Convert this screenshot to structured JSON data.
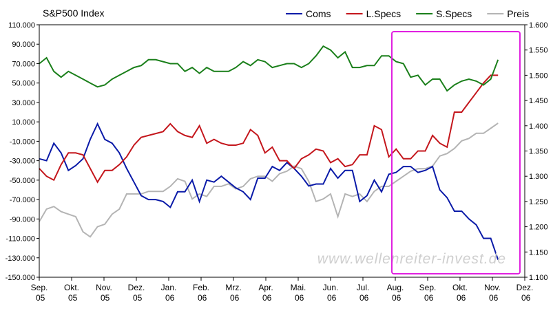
{
  "chart_data": {
    "type": "line",
    "title": "S&P500 Index",
    "annotation": "www.wellenreiter-invest.de",
    "legend": "top",
    "grid": false,
    "x": [
      0,
      0.225,
      0.45,
      0.675,
      0.9,
      1.125,
      1.35,
      1.575,
      1.8,
      2.025,
      2.25,
      2.475,
      2.7,
      2.925,
      3.15,
      3.375,
      3.6,
      3.825,
      4.05,
      4.275,
      4.5,
      4.725,
      4.95,
      5.175,
      5.4,
      5.625,
      5.85,
      6.075,
      6.3,
      6.525,
      6.75,
      6.975,
      7.2,
      7.425,
      7.65,
      7.875,
      8.1,
      8.325,
      8.55,
      8.775,
      9,
      9.225,
      9.45,
      9.675,
      9.9,
      10.125,
      10.35,
      10.575,
      10.8,
      11.025,
      11.25,
      11.475,
      11.7,
      11.925,
      12.15,
      12.375,
      12.6,
      12.825,
      13.05,
      13.275,
      13.5,
      13.725,
      13.95,
      14.175
    ],
    "xlim": [
      0,
      15
    ],
    "xticks": [
      {
        "value": 0,
        "label": "Sep. 05"
      },
      {
        "value": 1,
        "label": "Okt. 05"
      },
      {
        "value": 2,
        "label": "Nov. 05"
      },
      {
        "value": 3,
        "label": "Dez. 05"
      },
      {
        "value": 4,
        "label": "Jan. 06"
      },
      {
        "value": 5,
        "label": "Feb. 06"
      },
      {
        "value": 6,
        "label": "Mrz. 06"
      },
      {
        "value": 7,
        "label": "Apr. 06"
      },
      {
        "value": 8,
        "label": "Mai. 06"
      },
      {
        "value": 9,
        "label": "Jun. 06"
      },
      {
        "value": 10,
        "label": "Jul. 06"
      },
      {
        "value": 11,
        "label": "Aug. 06"
      },
      {
        "value": 12,
        "label": "Sep. 06"
      },
      {
        "value": 13,
        "label": "Okt. 06"
      },
      {
        "value": 14,
        "label": "Nov. 06"
      },
      {
        "value": 15,
        "label": "Dez. 06"
      }
    ],
    "ylim": [
      -150000,
      110000
    ],
    "yticks": [
      {
        "value": 110000,
        "label": "110.000"
      },
      {
        "value": 90000,
        "label": "90.000"
      },
      {
        "value": 70000,
        "label": "70.000"
      },
      {
        "value": 50000,
        "label": "50.000"
      },
      {
        "value": 30000,
        "label": "30.000"
      },
      {
        "value": 10000,
        "label": "10.000"
      },
      {
        "value": -10000,
        "label": "-10.000"
      },
      {
        "value": -30000,
        "label": "-30.000"
      },
      {
        "value": -50000,
        "label": "-50.000"
      },
      {
        "value": -70000,
        "label": "-70.000"
      },
      {
        "value": -90000,
        "label": "-90.000"
      },
      {
        "value": -110000,
        "label": "-110.000"
      },
      {
        "value": -130000,
        "label": "-130.000"
      },
      {
        "value": -150000,
        "label": "-150.000"
      }
    ],
    "y2lim": [
      1.1,
      1.6
    ],
    "y2ticks": [
      {
        "value": 1.6,
        "label": "1.600"
      },
      {
        "value": 1.55,
        "label": "1.550"
      },
      {
        "value": 1.5,
        "label": "1.500"
      },
      {
        "value": 1.45,
        "label": "1.450"
      },
      {
        "value": 1.4,
        "label": "1.400"
      },
      {
        "value": 1.35,
        "label": "1.350"
      },
      {
        "value": 1.3,
        "label": "1.300"
      },
      {
        "value": 1.25,
        "label": "1.250"
      },
      {
        "value": 1.2,
        "label": "1.200"
      },
      {
        "value": 1.15,
        "label": "1.150"
      },
      {
        "value": 1.1,
        "label": "1.100"
      }
    ],
    "series": [
      {
        "name": "Coms",
        "color": "#0a1aa8",
        "values": [
          -28000,
          -30000,
          -12000,
          -22000,
          -40000,
          -35000,
          -28000,
          -8000,
          8000,
          -8000,
          -12000,
          -22000,
          -38000,
          -52000,
          -66000,
          -70000,
          -70000,
          -72000,
          -78000,
          -62000,
          -62000,
          -50000,
          -72000,
          -50000,
          -52000,
          -46000,
          -52000,
          -58000,
          -62000,
          -70000,
          -48000,
          -48000,
          -36000,
          -40000,
          -32000,
          -38000,
          -46000,
          -56000,
          -54000,
          -54000,
          -38000,
          -48000,
          -40000,
          -40000,
          -72000,
          -66000,
          -50000,
          -62000,
          -44000,
          -42000,
          -36000,
          -36000,
          -42000,
          -40000,
          -36000,
          -60000,
          -68000,
          -82000,
          -82000,
          -90000,
          -96000,
          -110000,
          -110000,
          -132000
        ]
      },
      {
        "name": "L.Specs",
        "color": "#c4161c",
        "values": [
          -38000,
          -46000,
          -50000,
          -34000,
          -22000,
          -22000,
          -24000,
          -38000,
          -52000,
          -40000,
          -40000,
          -34000,
          -26000,
          -14000,
          -6000,
          -4000,
          -2000,
          0,
          8000,
          0,
          -4000,
          -6000,
          6000,
          -12000,
          -8000,
          -12000,
          -14000,
          -14000,
          -12000,
          2000,
          -4000,
          -22000,
          -16000,
          -30000,
          -30000,
          -38000,
          -28000,
          -24000,
          -18000,
          -20000,
          -32000,
          -28000,
          -36000,
          -34000,
          -24000,
          -24000,
          6000,
          2000,
          -26000,
          -18000,
          -28000,
          -28000,
          -20000,
          -20000,
          -4000,
          -12000,
          -16000,
          20000,
          20000,
          30000,
          40000,
          50000,
          58000,
          58000
        ]
      },
      {
        "name": "S.Specs",
        "color": "#1a7f1a",
        "values": [
          70000,
          76000,
          62000,
          56000,
          62000,
          58000,
          54000,
          50000,
          46000,
          48000,
          54000,
          58000,
          62000,
          66000,
          68000,
          74000,
          74000,
          72000,
          70000,
          70000,
          62000,
          66000,
          60000,
          66000,
          62000,
          62000,
          62000,
          66000,
          72000,
          68000,
          74000,
          72000,
          66000,
          68000,
          70000,
          70000,
          66000,
          70000,
          78000,
          88000,
          84000,
          76000,
          82000,
          66000,
          66000,
          68000,
          68000,
          78000,
          78000,
          72000,
          70000,
          56000,
          58000,
          48000,
          54000,
          54000,
          42000,
          48000,
          52000,
          54000,
          52000,
          48000,
          54000,
          74000
        ]
      },
      {
        "name": "Preis",
        "color": "#b4b4b4",
        "axis": "y2",
        "values": [
          1.21,
          1.235,
          1.24,
          1.23,
          1.225,
          1.22,
          1.19,
          1.18,
          1.2,
          1.205,
          1.225,
          1.235,
          1.265,
          1.265,
          1.265,
          1.27,
          1.27,
          1.27,
          1.28,
          1.295,
          1.29,
          1.255,
          1.265,
          1.26,
          1.28,
          1.28,
          1.285,
          1.275,
          1.28,
          1.295,
          1.3,
          1.3,
          1.29,
          1.305,
          1.31,
          1.32,
          1.315,
          1.29,
          1.25,
          1.255,
          1.265,
          1.22,
          1.265,
          1.26,
          1.265,
          1.25,
          1.27,
          1.28,
          1.28,
          1.29,
          1.3,
          1.31,
          1.315,
          1.315,
          1.32,
          1.34,
          1.345,
          1.355,
          1.37,
          1.375,
          1.385,
          1.385,
          1.395,
          1.405
        ]
      }
    ]
  }
}
